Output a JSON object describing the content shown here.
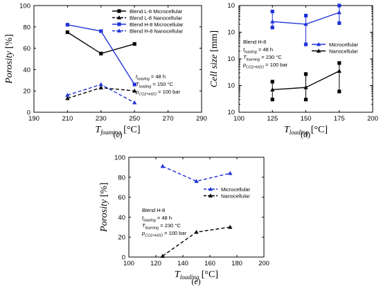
{
  "chart_data": [
    {
      "panel": "(c)",
      "type": "line",
      "xlabel_main": "T",
      "xlabel_sub": "foaming",
      "xlabel_unit": " [°C]",
      "ylabel_main": "Porosity",
      "ylabel_unit": " [%]",
      "xlim": [
        190,
        290
      ],
      "ylim": [
        0,
        100
      ],
      "xticks": [
        190,
        210,
        230,
        250,
        270,
        290
      ],
      "yticks": [
        0,
        20,
        40,
        60,
        80,
        100
      ],
      "x": [
        210,
        230,
        250
      ],
      "series": [
        {
          "name": "Blend L-8 Microcellular",
          "marker": "square",
          "color": "#000000",
          "dash": false,
          "values": [
            75,
            55,
            64
          ]
        },
        {
          "name": "Blend L-8 Nanocellular",
          "marker": "triangle",
          "color": "#000000",
          "dash": true,
          "values": [
            13,
            23,
            20
          ]
        },
        {
          "name": "Blend H-8 Microcellular",
          "marker": "square",
          "color": "#1f32d8",
          "dash": false,
          "values": [
            82,
            76,
            26
          ]
        },
        {
          "name": "Blend H-8 Nanocellular",
          "marker": "triangle",
          "color": "#1f32d8",
          "dash": true,
          "values": [
            16,
            26,
            9
          ]
        }
      ],
      "legend_position": "top-right",
      "annotation": [
        {
          "main": "t",
          "sub": "loading",
          "rest": " = 48 h"
        },
        {
          "main": "T",
          "sub": "loading",
          "rest": " = 150 °C"
        },
        {
          "main": "p",
          "sub": "CO2+H2O",
          "rest": " = 100 bar"
        }
      ]
    },
    {
      "panel": "(d)",
      "type": "line",
      "scale_y": "log",
      "xlabel_main": "T",
      "xlabel_sub": "loading",
      "xlabel_unit": " [°C]",
      "ylabel_main": "Cell size",
      "ylabel_unit": " [mm]",
      "xlim": [
        100,
        200
      ],
      "ylim_exp": [
        -5,
        -1
      ],
      "xticks": [
        100,
        125,
        150,
        175,
        200
      ],
      "yticks_exp": [
        -5,
        -4,
        -3,
        -2,
        -1
      ],
      "x": [
        125,
        150,
        175
      ],
      "series": [
        {
          "name": "Microcellular",
          "marker": "triangle",
          "color": "#1f32d8",
          "dash": false,
          "values": [
            0.025,
            0.02,
            0.055
          ],
          "err_low": [
            0.015,
            0.0035,
            0.022
          ],
          "err_high": [
            0.06,
            0.042,
            0.1
          ]
        },
        {
          "name": "Nanocellular",
          "marker": "triangle",
          "color": "#000000",
          "dash": false,
          "values": [
            7e-05,
            8.5e-05,
            0.00035
          ],
          "err_low": [
            3e-05,
            3e-05,
            6e-05
          ],
          "err_high": [
            0.00014,
            0.00027,
            0.0007
          ]
        }
      ],
      "legend_position": "right",
      "annotation": [
        {
          "main": "Blend H-8",
          "sub": "",
          "rest": ""
        },
        {
          "main": "t",
          "sub": "loading",
          "rest": " = 48 h"
        },
        {
          "main": "T",
          "sub": "foaming",
          "rest": " = 230 °C"
        },
        {
          "main": "p",
          "sub": "CO2+H2O",
          "rest": " = 100 bar"
        }
      ]
    },
    {
      "panel": "(e)",
      "type": "line",
      "xlabel_main": "T",
      "xlabel_sub": "loading",
      "xlabel_unit": " [°C]",
      "ylabel_main": "Porosity",
      "ylabel_unit": " [%]",
      "xlim": [
        100,
        200
      ],
      "ylim": [
        0,
        100
      ],
      "xticks": [
        100,
        120,
        140,
        160,
        180,
        200
      ],
      "yticks": [
        0,
        20,
        40,
        60,
        80,
        100
      ],
      "x": [
        125,
        150,
        175
      ],
      "series": [
        {
          "name": "Microcellular",
          "marker": "triangle",
          "color": "#1f32d8",
          "dash": true,
          "values": [
            91,
            76,
            84
          ]
        },
        {
          "name": "Nanocellular",
          "marker": "triangle",
          "color": "#000000",
          "dash": true,
          "values": [
            1,
            25,
            30
          ]
        }
      ],
      "legend_position": "right",
      "annotation": [
        {
          "main": "Blend H-8",
          "sub": "",
          "rest": ""
        },
        {
          "main": "t",
          "sub": "loading",
          "rest": " = 48 h"
        },
        {
          "main": "T",
          "sub": "foaming",
          "rest": " = 230 °C"
        },
        {
          "main": "p",
          "sub": "CO2+H2O",
          "rest": " = 100 bar"
        }
      ]
    }
  ]
}
